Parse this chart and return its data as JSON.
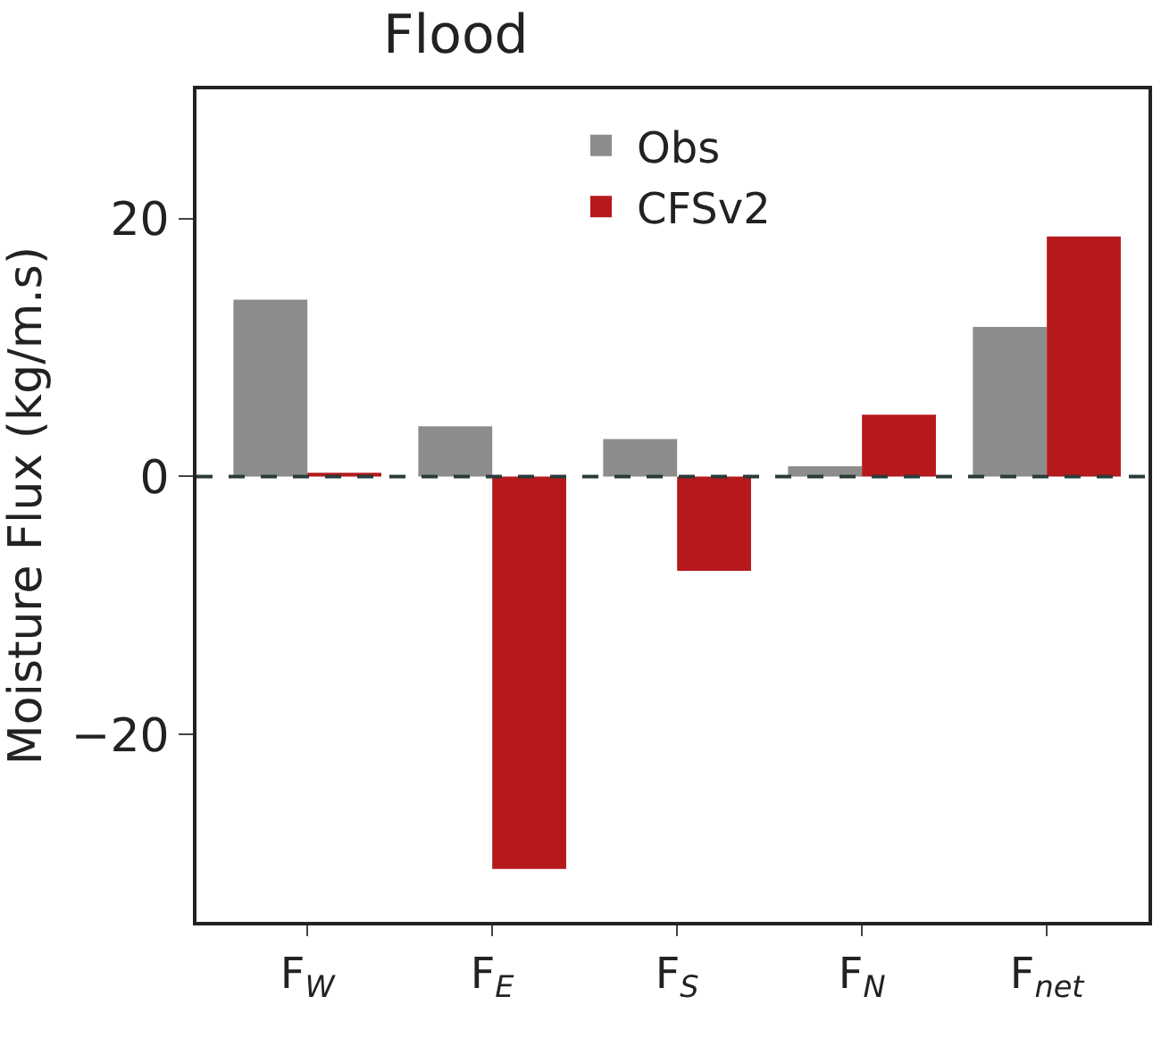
{
  "chart_data": {
    "type": "bar",
    "title": "Flood",
    "ylabel": "Moisture Flux (kg/m.s)",
    "categories": [
      "F$_{W}$",
      "F$_{E}$",
      "F$_{S}$",
      "F$_{N}$",
      "F$_{net}$"
    ],
    "series": [
      {
        "name": "Obs",
        "color": "#8c8c8c",
        "values": [
          13.7,
          3.9,
          2.9,
          0.8,
          11.6
        ]
      },
      {
        "name": "CFSv2",
        "color": "#b5191c",
        "values": [
          0.3,
          -30.4,
          -7.3,
          4.8,
          18.6
        ]
      }
    ],
    "ylim": [
      -34.5,
      30
    ],
    "yticks": [
      -20,
      0,
      20
    ],
    "ref_lines": [
      {
        "axis": "y",
        "value": 0,
        "color": "#2b3a3a",
        "line_style": "dashed"
      }
    ],
    "legend": "top"
  }
}
